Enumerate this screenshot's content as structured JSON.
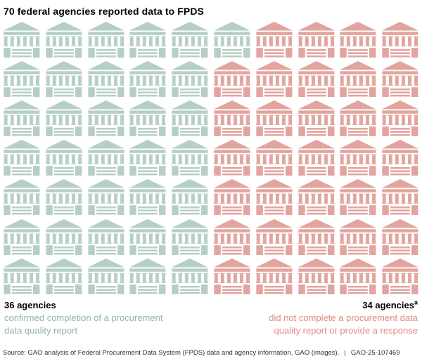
{
  "chart_data": {
    "type": "pictograph",
    "title": "70 federal agencies reported data to FPDS",
    "icon": "government-building",
    "total": 70,
    "grid": {
      "rows": 7,
      "cols": 10,
      "fill_order": "row-wise, first series left"
    },
    "series": [
      {
        "name": "confirmed completion of a procurement data quality report",
        "value": 36,
        "color": "#b6cfc4"
      },
      {
        "name": "did not complete a procurement data quality report or provide a response",
        "value": 34,
        "color": "#e2a49e"
      }
    ],
    "series1_count_per_row": [
      6,
      5,
      5,
      5,
      5,
      5,
      5
    ]
  },
  "legend": {
    "left": {
      "value": "36 agencies",
      "lines": [
        "confirmed completion of a procurement",
        "data quality report"
      ],
      "text_color": "#8fb5a6"
    },
    "right": {
      "value": "34 agencies",
      "superscript": "a",
      "lines": [
        "did not complete a procurement data",
        "quality report or provide a response"
      ],
      "text_color": "#e08b84"
    }
  },
  "footer": {
    "source": "Source: GAO analysis of Federal Procurement Data System (FPDS) data and agency information, GAO (images).",
    "separator": "|",
    "report_id": "GAO-25-107469"
  }
}
